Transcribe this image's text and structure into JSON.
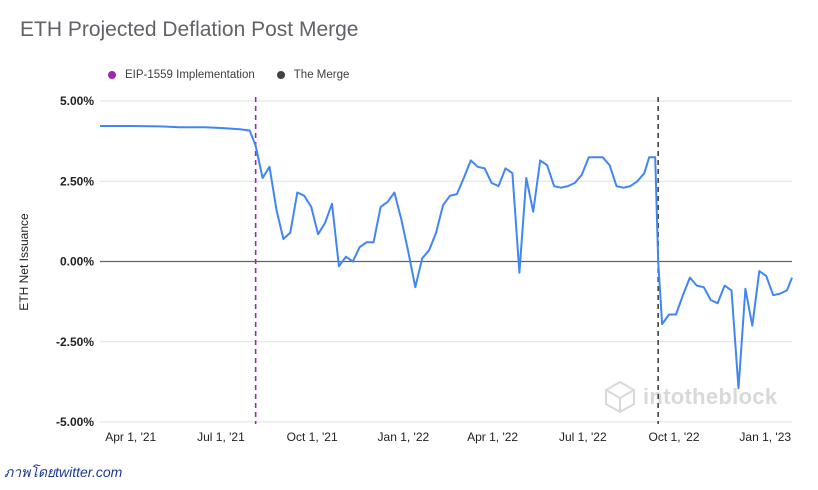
{
  "chart_data": {
    "type": "line",
    "title": "ETH Projected Deflation Post Merge",
    "xlabel": "",
    "ylabel": "ETH Net Issuance",
    "ylim": [
      -5,
      5
    ],
    "yticks": [
      "5.00%",
      "2.50%",
      "0.00%",
      "-2.50%",
      "-5.00%"
    ],
    "ytick_values": [
      5,
      2.5,
      0,
      -2.5,
      -5
    ],
    "xlim": [
      "2021-03-01",
      "2023-01-28"
    ],
    "xticks": [
      {
        "label": "Apr 1, '21",
        "date": "2021-04-01"
      },
      {
        "label": "Jul 1, '21",
        "date": "2021-07-01"
      },
      {
        "label": "Oct 1, '21",
        "date": "2021-10-01"
      },
      {
        "label": "Jan 1, '22",
        "date": "2022-01-01"
      },
      {
        "label": "Apr 1, '22",
        "date": "2022-04-01"
      },
      {
        "label": "Jul 1, '22",
        "date": "2022-07-01"
      },
      {
        "label": "Oct 1, '22",
        "date": "2022-10-01"
      },
      {
        "label": "Jan 1, '23",
        "date": "2023-01-01"
      }
    ],
    "grid": true,
    "legend_position": "top-left",
    "events": [
      {
        "name": "EIP-1559 Implementation",
        "date": "2021-08-05",
        "color": "#9c27b0"
      },
      {
        "name": "The Merge",
        "date": "2022-09-15",
        "color": "#424242"
      }
    ],
    "series": [
      {
        "color": "#4285f4",
        "points": [
          [
            "2021-03-01",
            4.22
          ],
          [
            "2021-04-01",
            4.22
          ],
          [
            "2021-05-01",
            4.21
          ],
          [
            "2021-05-20",
            4.18
          ],
          [
            "2021-06-15",
            4.18
          ],
          [
            "2021-07-01",
            4.16
          ],
          [
            "2021-07-20",
            4.12
          ],
          [
            "2021-07-30",
            4.08
          ],
          [
            "2021-08-05",
            3.6
          ],
          [
            "2021-08-12",
            2.6
          ],
          [
            "2021-08-19",
            2.95
          ],
          [
            "2021-08-26",
            1.6
          ],
          [
            "2021-09-02",
            0.7
          ],
          [
            "2021-09-09",
            0.9
          ],
          [
            "2021-09-16",
            2.15
          ],
          [
            "2021-09-23",
            2.05
          ],
          [
            "2021-09-30",
            1.7
          ],
          [
            "2021-10-07",
            0.85
          ],
          [
            "2021-10-14",
            1.2
          ],
          [
            "2021-10-21",
            1.8
          ],
          [
            "2021-10-28",
            -0.15
          ],
          [
            "2021-11-04",
            0.15
          ],
          [
            "2021-11-11",
            0.0
          ],
          [
            "2021-11-18",
            0.45
          ],
          [
            "2021-11-25",
            0.6
          ],
          [
            "2021-12-02",
            0.6
          ],
          [
            "2021-12-09",
            1.7
          ],
          [
            "2021-12-16",
            1.85
          ],
          [
            "2021-12-23",
            2.15
          ],
          [
            "2021-12-30",
            1.3
          ],
          [
            "2022-01-06",
            0.3
          ],
          [
            "2022-01-13",
            -0.8
          ],
          [
            "2022-01-20",
            0.1
          ],
          [
            "2022-01-27",
            0.35
          ],
          [
            "2022-02-03",
            0.9
          ],
          [
            "2022-02-10",
            1.75
          ],
          [
            "2022-02-17",
            2.05
          ],
          [
            "2022-02-24",
            2.1
          ],
          [
            "2022-03-03",
            2.6
          ],
          [
            "2022-03-10",
            3.15
          ],
          [
            "2022-03-17",
            2.95
          ],
          [
            "2022-03-24",
            2.9
          ],
          [
            "2022-03-31",
            2.45
          ],
          [
            "2022-04-07",
            2.35
          ],
          [
            "2022-04-14",
            2.9
          ],
          [
            "2022-04-21",
            2.75
          ],
          [
            "2022-04-28",
            -0.35
          ],
          [
            "2022-05-05",
            2.6
          ],
          [
            "2022-05-12",
            1.55
          ],
          [
            "2022-05-19",
            3.15
          ],
          [
            "2022-05-26",
            3.0
          ],
          [
            "2022-06-02",
            2.35
          ],
          [
            "2022-06-09",
            2.3
          ],
          [
            "2022-06-16",
            2.35
          ],
          [
            "2022-06-23",
            2.45
          ],
          [
            "2022-06-30",
            2.7
          ],
          [
            "2022-07-07",
            3.25
          ],
          [
            "2022-07-14",
            3.25
          ],
          [
            "2022-07-21",
            3.25
          ],
          [
            "2022-07-28",
            3.0
          ],
          [
            "2022-08-04",
            2.35
          ],
          [
            "2022-08-11",
            2.3
          ],
          [
            "2022-08-18",
            2.35
          ],
          [
            "2022-08-25",
            2.5
          ],
          [
            "2022-09-01",
            2.75
          ],
          [
            "2022-09-06",
            3.25
          ],
          [
            "2022-09-12",
            3.25
          ],
          [
            "2022-09-15",
            0.0
          ],
          [
            "2022-09-19",
            -1.95
          ],
          [
            "2022-09-26",
            -1.65
          ],
          [
            "2022-10-03",
            -1.65
          ],
          [
            "2022-10-10",
            -1.05
          ],
          [
            "2022-10-17",
            -0.5
          ],
          [
            "2022-10-24",
            -0.75
          ],
          [
            "2022-10-31",
            -0.8
          ],
          [
            "2022-11-07",
            -1.2
          ],
          [
            "2022-11-14",
            -1.3
          ],
          [
            "2022-11-21",
            -0.75
          ],
          [
            "2022-11-28",
            -0.9
          ],
          [
            "2022-12-05",
            -3.95
          ],
          [
            "2022-12-12",
            -0.85
          ],
          [
            "2022-12-19",
            -2.0
          ],
          [
            "2022-12-26",
            -0.3
          ],
          [
            "2023-01-02",
            -0.45
          ],
          [
            "2023-01-09",
            -1.05
          ],
          [
            "2023-01-16",
            -1.0
          ],
          [
            "2023-01-23",
            -0.9
          ],
          [
            "2023-01-28",
            -0.5
          ]
        ]
      }
    ]
  },
  "credit": "ภาพโดยtwitter.com",
  "watermark": "intotheblock"
}
